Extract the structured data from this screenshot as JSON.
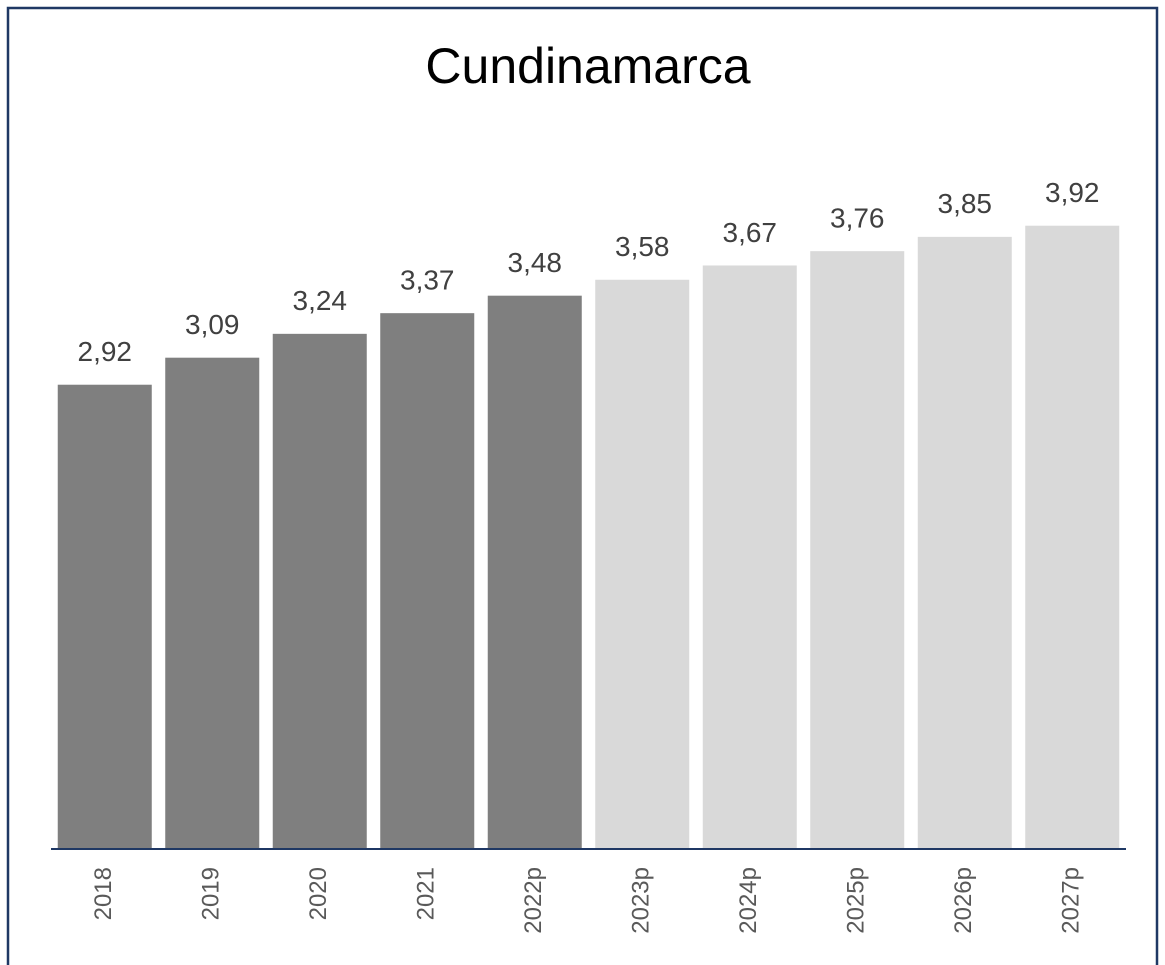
{
  "chart_data": {
    "type": "bar",
    "title": "Cundinamarca",
    "categories": [
      "2018",
      "2019",
      "2020",
      "2021",
      "2022p",
      "2023p",
      "2024p",
      "2025p",
      "2026p",
      "2027p"
    ],
    "values": [
      2.92,
      3.09,
      3.24,
      3.37,
      3.48,
      3.58,
      3.67,
      3.76,
      3.85,
      3.92
    ],
    "value_labels": [
      "2,92",
      "3,09",
      "3,24",
      "3,37",
      "3,48",
      "3,58",
      "3,67",
      "3,76",
      "3,85",
      "3,92"
    ],
    "colors": [
      "#7f7f7f",
      "#7f7f7f",
      "#7f7f7f",
      "#7f7f7f",
      "#7f7f7f",
      "#d9d9d9",
      "#d9d9d9",
      "#d9d9d9",
      "#d9d9d9",
      "#d9d9d9"
    ],
    "ylim": [
      0,
      4.5
    ]
  }
}
